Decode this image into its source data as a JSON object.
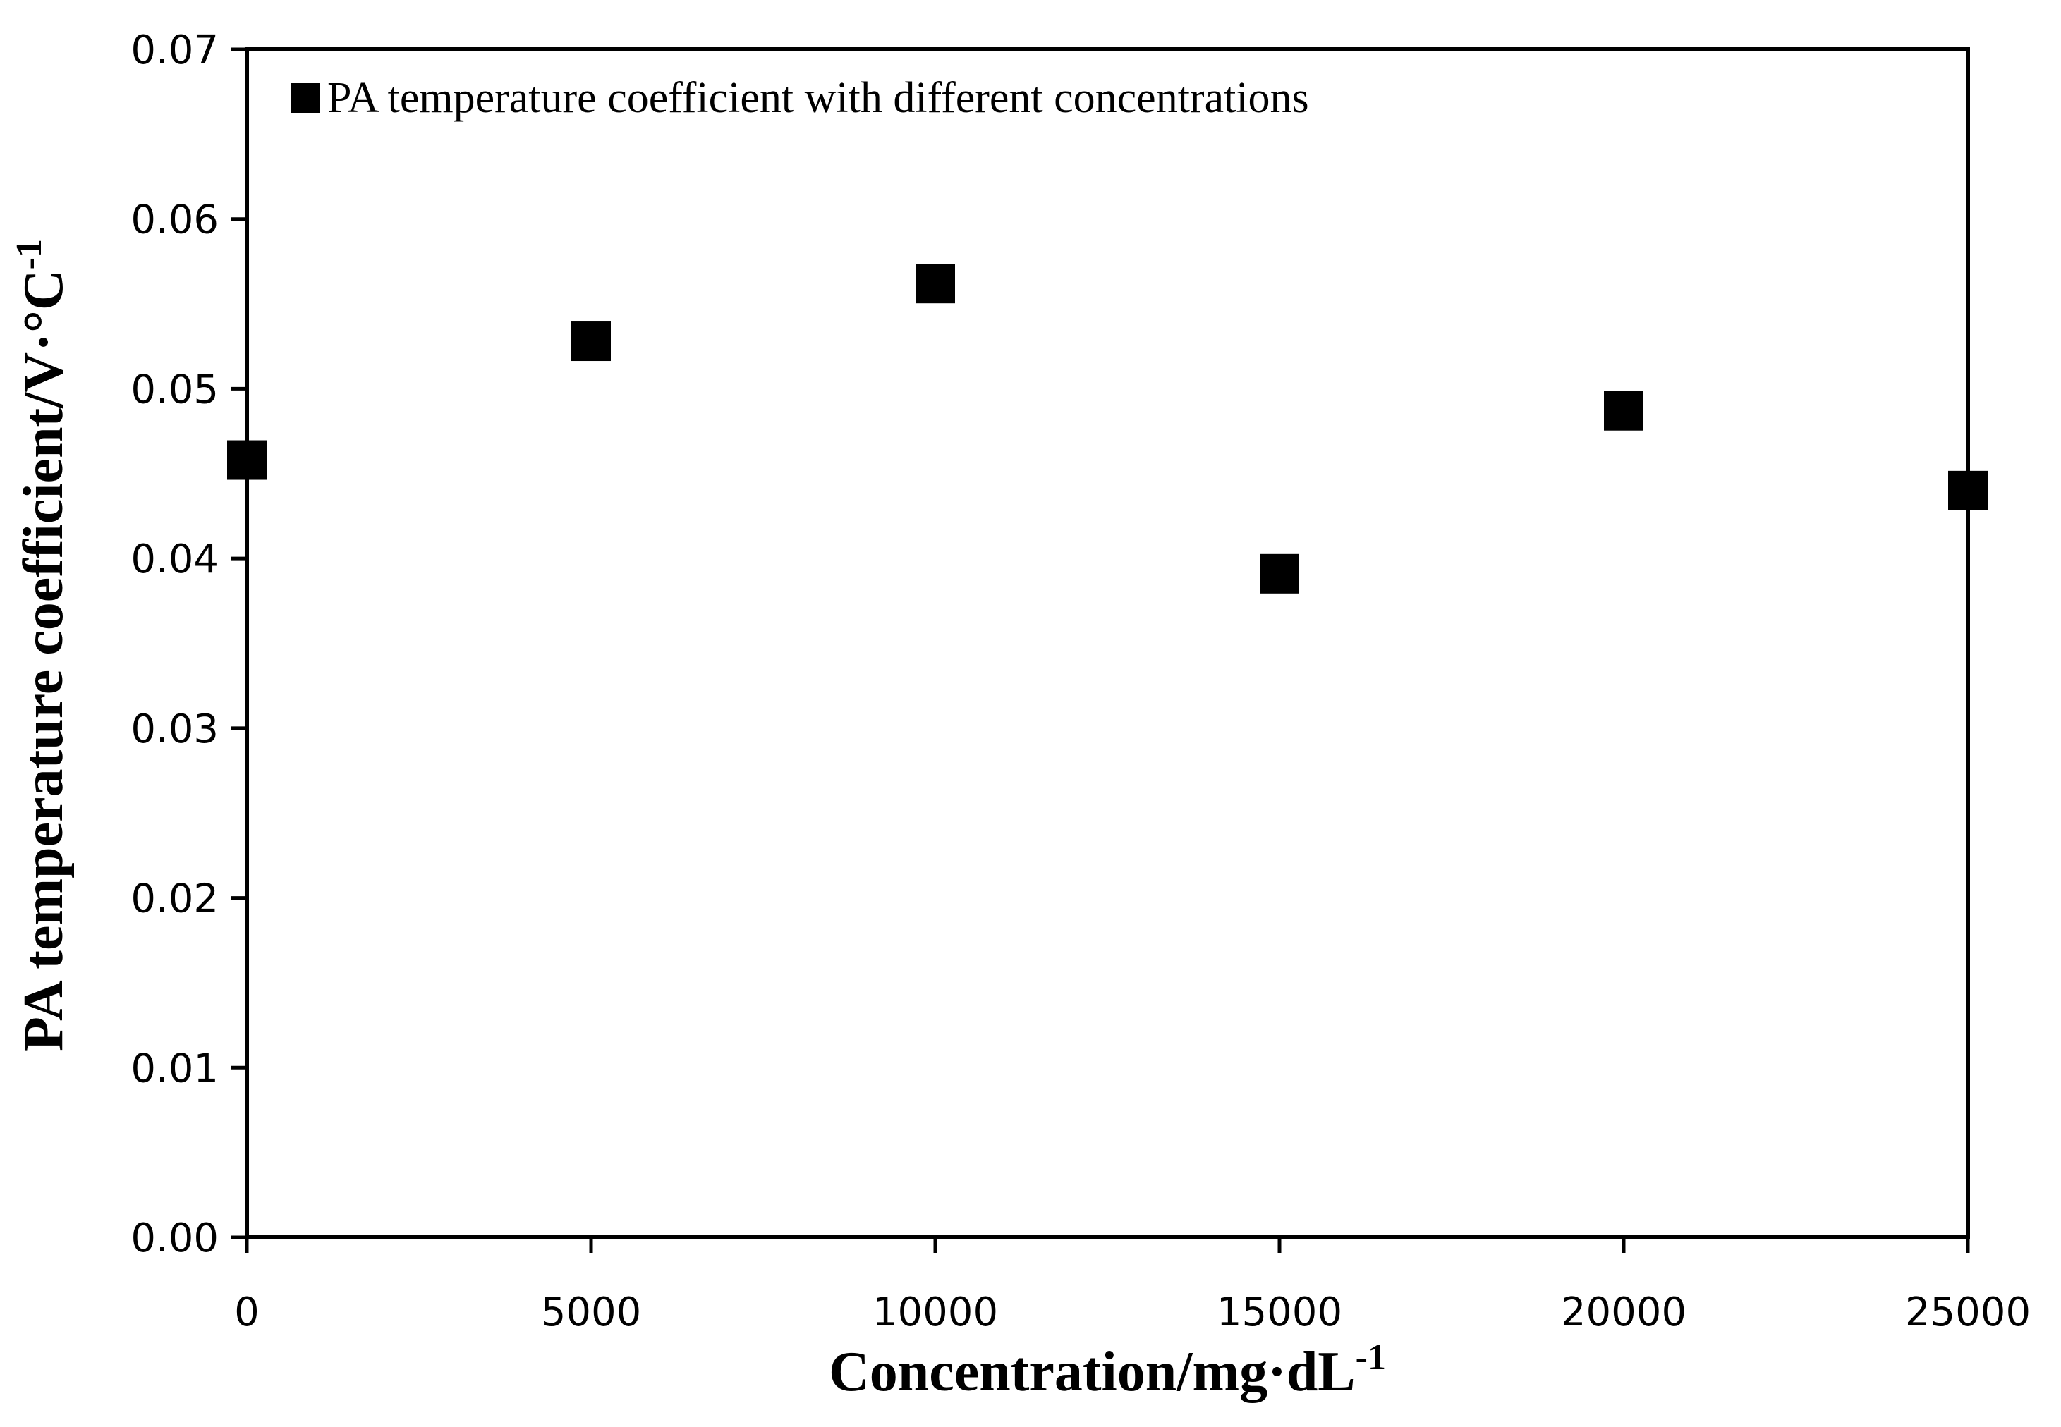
{
  "chart_data": {
    "type": "scatter",
    "title": "",
    "xlabel": "Concentration/mg·dL",
    "xlabel_sup": "-1",
    "ylabel": "PA temperature coefficient/V·°C",
    "ylabel_sup": "-1",
    "xlim": [
      0,
      25000
    ],
    "ylim": [
      0,
      0.07
    ],
    "x_ticks": [
      0,
      5000,
      10000,
      15000,
      20000,
      25000
    ],
    "x_tick_labels": [
      "0",
      "5000",
      "10000",
      "15000",
      "20000",
      "25000"
    ],
    "y_ticks": [
      0,
      0.01,
      0.02,
      0.03,
      0.04,
      0.05,
      0.06,
      0.07
    ],
    "y_tick_labels": [
      "0.00",
      "0.01",
      "0.02",
      "0.03",
      "0.04",
      "0.05",
      "0.06",
      "0.07"
    ],
    "grid": false,
    "legend_position": "top-left",
    "series": [
      {
        "name": "PA temperature coefficient with different concentrations",
        "marker": "square",
        "color": "#000000",
        "x": [
          0,
          5000,
          10000,
          15000,
          20000,
          25000
        ],
        "y": [
          0.0458,
          0.0528,
          0.0562,
          0.0391,
          0.0487,
          0.044
        ]
      }
    ]
  }
}
